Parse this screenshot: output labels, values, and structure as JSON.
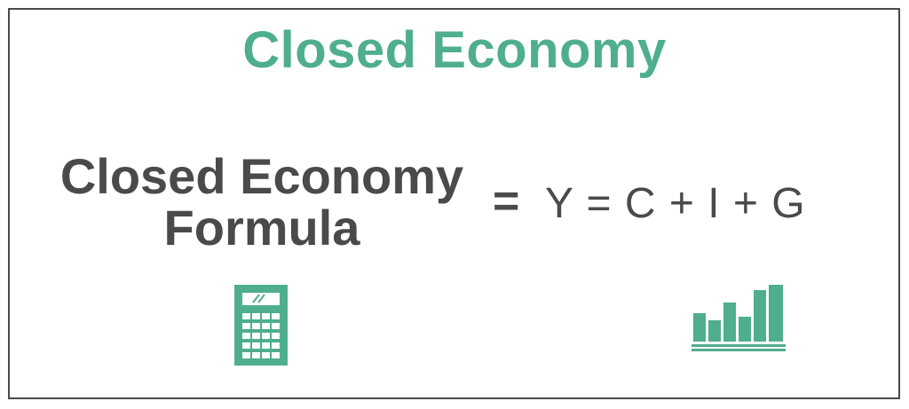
{
  "title": "Closed Economy",
  "formula": {
    "label_line1": "Closed Economy",
    "label_line2": "Formula",
    "equals": "=",
    "expression": "Y = C + I + G"
  },
  "icons": {
    "left": "calculator-icon",
    "right": "bar-chart-icon"
  },
  "colors": {
    "accent": "#4fae8e",
    "text": "#4a4a4a",
    "border": "#4a4a4a"
  }
}
